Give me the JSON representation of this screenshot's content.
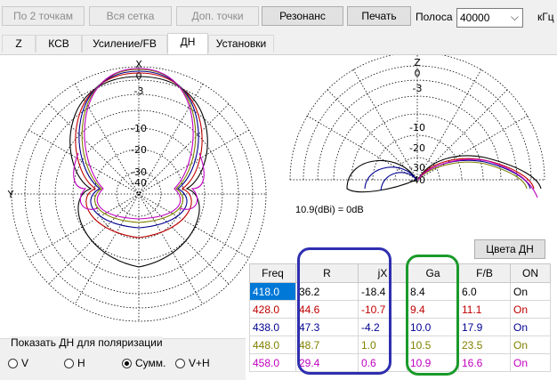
{
  "toolbar": {
    "by_two_points": "По 2 точкам",
    "whole_grid": "Вся сетка",
    "extra_points": "Доп. точки",
    "resonance": "Резонанс",
    "print": "Печать",
    "band_label": "Полоса",
    "band_value": "40000",
    "unit": "кГц"
  },
  "tabs": [
    "Z",
    "КСВ",
    "Усиление/FB",
    "ДН",
    "Установки"
  ],
  "active_tab": "ДН",
  "polar": {
    "axis_x": "X",
    "axis_y": "Y",
    "axis_z": "Z",
    "rings": [
      "0",
      "-3",
      "-10",
      "-20",
      "-30",
      "-40"
    ],
    "gain_label": "10.9(dBi) = 0dB"
  },
  "colors_button": "Цвета ДН",
  "table": {
    "headers": [
      "Freq",
      "R",
      "jX",
      "Ga",
      "F/B",
      "ON"
    ],
    "rows": [
      {
        "freq": "418.0",
        "r": "36.2",
        "jx": "-18.4",
        "ga": "8.4",
        "fb": "6.0",
        "on": "On",
        "color": "#000000",
        "selected": true
      },
      {
        "freq": "428.0",
        "r": "44.6",
        "jx": "-10.7",
        "ga": "9.4",
        "fb": "11.1",
        "on": "On",
        "color": "#c00000",
        "selected": false
      },
      {
        "freq": "438.0",
        "r": "47.3",
        "jx": "-4.2",
        "ga": "10.0",
        "fb": "17.9",
        "on": "On",
        "color": "#000090",
        "selected": false
      },
      {
        "freq": "448.0",
        "r": "48.7",
        "jx": "1.0",
        "ga": "10.5",
        "fb": "23.5",
        "on": "On",
        "color": "#808000",
        "selected": false
      },
      {
        "freq": "458.0",
        "r": "29.4",
        "jx": "0.6",
        "ga": "10.9",
        "fb": "16.6",
        "on": "On",
        "color": "#c000c0",
        "selected": false
      }
    ]
  },
  "polarization": {
    "title": "Показать ДН для поляризации",
    "options": [
      "V",
      "H",
      "Сумм.",
      "V+H"
    ],
    "selected": "Сумм."
  },
  "highlight_colors": {
    "blue": "#2f2fb0",
    "green": "#1a9a2a"
  }
}
